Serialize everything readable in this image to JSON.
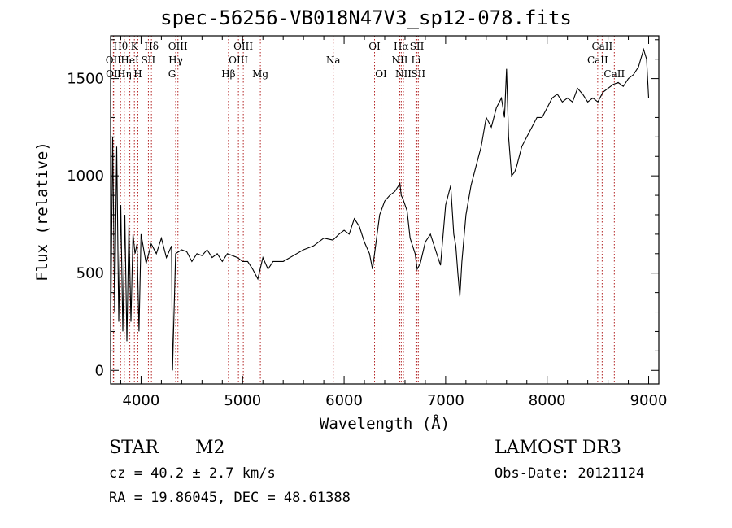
{
  "figure": {
    "title": "spec-56256-VB018N47V3_sp12-078.fits",
    "xlabel": "Wavelength (Å)",
    "ylabel": "Flux (relative)",
    "object_type": "STAR",
    "subclass": "M2",
    "survey": "LAMOST DR3",
    "cz": "cz = 40.2 ± 2.7 km/s",
    "obs_date": "Obs-Date: 20121124",
    "coords": "RA =  19.86045, DEC =  48.61388"
  },
  "colors": {
    "spectrum": "#000000",
    "line_markers": "#b22222",
    "axes": "#000000"
  },
  "chart_data": {
    "type": "line",
    "title": "spec-56256-VB018N47V3_sp12-078.fits",
    "xlabel": "Wavelength (Å)",
    "ylabel": "Flux (relative)",
    "xlim": [
      3700,
      9100
    ],
    "ylim": [
      -70,
      1720
    ],
    "xticks": [
      4000,
      5000,
      6000,
      7000,
      8000,
      9000
    ],
    "yticks": [
      0,
      500,
      1000,
      1500
    ],
    "grid": false,
    "series": [
      {
        "x": [
          3700,
          3720,
          3740,
          3760,
          3780,
          3800,
          3820,
          3840,
          3860,
          3880,
          3900,
          3920,
          3940,
          3960,
          3980,
          4000,
          4050,
          4100,
          4150,
          4200,
          4250,
          4300,
          4310,
          4340,
          4400,
          4450,
          4500,
          4550,
          4600,
          4650,
          4700,
          4750,
          4800,
          4850,
          4900,
          4950,
          5000,
          5050,
          5100,
          5150,
          5200,
          5250,
          5300,
          5400,
          5500,
          5600,
          5700,
          5800,
          5890,
          5950,
          6000,
          6050,
          6100,
          6150,
          6200,
          6250,
          6280,
          6300,
          6350,
          6400,
          6450,
          6500,
          6550,
          6563,
          6580,
          6620,
          6650,
          6700,
          6720,
          6750,
          6800,
          6850,
          6900,
          6950,
          7000,
          7050,
          7080,
          7100,
          7120,
          7140,
          7160,
          7200,
          7250,
          7300,
          7350,
          7400,
          7450,
          7500,
          7550,
          7580,
          7600,
          7620,
          7650,
          7680,
          7700,
          7750,
          7800,
          7850,
          7900,
          7950,
          8000,
          8050,
          8100,
          8150,
          8200,
          8250,
          8300,
          8350,
          8400,
          8450,
          8500,
          8550,
          8600,
          8650,
          8700,
          8750,
          8800,
          8850,
          8900,
          8950,
          8980,
          9000
        ],
        "y": [
          150,
          1200,
          300,
          1150,
          250,
          850,
          200,
          800,
          150,
          750,
          250,
          700,
          600,
          650,
          200,
          700,
          550,
          650,
          600,
          680,
          580,
          640,
          0,
          600,
          620,
          610,
          560,
          600,
          590,
          620,
          580,
          600,
          560,
          600,
          590,
          580,
          560,
          560,
          520,
          470,
          580,
          520,
          560,
          560,
          590,
          620,
          640,
          680,
          670,
          700,
          720,
          700,
          780,
          740,
          660,
          600,
          520,
          600,
          800,
          870,
          900,
          920,
          960,
          900,
          880,
          820,
          680,
          600,
          520,
          550,
          660,
          700,
          620,
          540,
          850,
          950,
          700,
          640,
          500,
          380,
          560,
          800,
          950,
          1050,
          1150,
          1300,
          1250,
          1350,
          1400,
          1300,
          1550,
          1200,
          1000,
          1020,
          1050,
          1150,
          1200,
          1250,
          1300,
          1300,
          1350,
          1400,
          1420,
          1380,
          1400,
          1380,
          1450,
          1420,
          1380,
          1400,
          1380,
          1430,
          1450,
          1470,
          1480,
          1460,
          1500,
          1520,
          1560,
          1650,
          1600,
          1400
        ]
      }
    ],
    "lines": [
      {
        "label": "Hθ",
        "row": 0,
        "x": 3798
      },
      {
        "label": "OII",
        "row": 1,
        "x": 3727
      },
      {
        "label": "OII",
        "row": 2,
        "x": 3730
      },
      {
        "label": "K",
        "row": 0,
        "x": 3934
      },
      {
        "label": "Hη",
        "row": 2,
        "x": 3835
      },
      {
        "label": "HeI",
        "row": 1,
        "x": 3889
      },
      {
        "label": "H",
        "row": 2,
        "x": 3968
      },
      {
        "label": "SII",
        "row": 1,
        "x": 4072
      },
      {
        "label": "Hδ",
        "row": 0,
        "x": 4102
      },
      {
        "label": "G",
        "row": 2,
        "x": 4305
      },
      {
        "label": "OIII",
        "row": 0,
        "x": 4363
      },
      {
        "label": "Hγ",
        "row": 1,
        "x": 4341
      },
      {
        "label": "Hβ",
        "row": 2,
        "x": 4861
      },
      {
        "label": "OIII",
        "row": 0,
        "x": 5007
      },
      {
        "label": "OIII",
        "row": 1,
        "x": 4959
      },
      {
        "label": "Mg",
        "row": 2,
        "x": 5175
      },
      {
        "label": "Na",
        "row": 1,
        "x": 5893
      },
      {
        "label": "OI",
        "row": 0,
        "x": 6300
      },
      {
        "label": "OI",
        "row": 2,
        "x": 6364
      },
      {
        "label": "Hα",
        "row": 0,
        "x": 6563
      },
      {
        "label": "NII",
        "row": 1,
        "x": 6548
      },
      {
        "label": "NII",
        "row": 2,
        "x": 6584
      },
      {
        "label": "SII",
        "row": 0,
        "x": 6717
      },
      {
        "label": "Li",
        "row": 1,
        "x": 6708
      },
      {
        "label": "SII",
        "row": 2,
        "x": 6731
      },
      {
        "label": "CaII",
        "row": 0,
        "x": 8542
      },
      {
        "label": "CaII",
        "row": 1,
        "x": 8498
      },
      {
        "label": "CaII",
        "row": 2,
        "x": 8662
      }
    ]
  }
}
